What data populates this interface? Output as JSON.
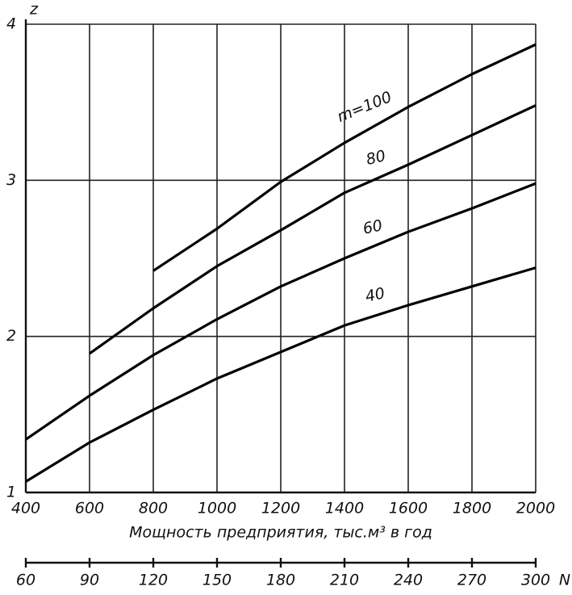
{
  "chart_data": {
    "type": "line",
    "y_label": "z",
    "x_label": "Мощность предприятия, тыс.м³ в год",
    "x": [
      400,
      600,
      800,
      1000,
      1200,
      1400,
      1600,
      1800,
      2000
    ],
    "series": [
      {
        "name": "40",
        "color": "#000000",
        "values": [
          1.07,
          1.32,
          1.53,
          1.73,
          1.9,
          2.07,
          2.2,
          2.32,
          2.44
        ]
      },
      {
        "name": "60",
        "color": "#000000",
        "values": [
          1.34,
          1.62,
          1.88,
          2.11,
          2.32,
          2.5,
          2.67,
          2.82,
          2.98
        ]
      },
      {
        "name": "80",
        "color": "#000000",
        "values": [
          null,
          1.89,
          2.18,
          2.45,
          2.68,
          2.92,
          3.1,
          3.29,
          3.48
        ]
      },
      {
        "name": "m=100",
        "color": "#000000",
        "values": [
          null,
          null,
          2.42,
          2.69,
          2.99,
          3.24,
          3.47,
          3.68,
          3.87
        ]
      }
    ],
    "xlim": [
      400,
      2000
    ],
    "xticks": [
      400,
      600,
      800,
      1000,
      1200,
      1400,
      1600,
      1800,
      2000
    ],
    "ylim": [
      1,
      4
    ],
    "yticks": [
      1,
      2,
      3,
      4
    ],
    "grid": true,
    "x2_label": "N",
    "x2lim": [
      60,
      300
    ],
    "x2ticks": [
      60,
      90,
      120,
      150,
      180,
      210,
      240,
      270,
      300
    ]
  }
}
